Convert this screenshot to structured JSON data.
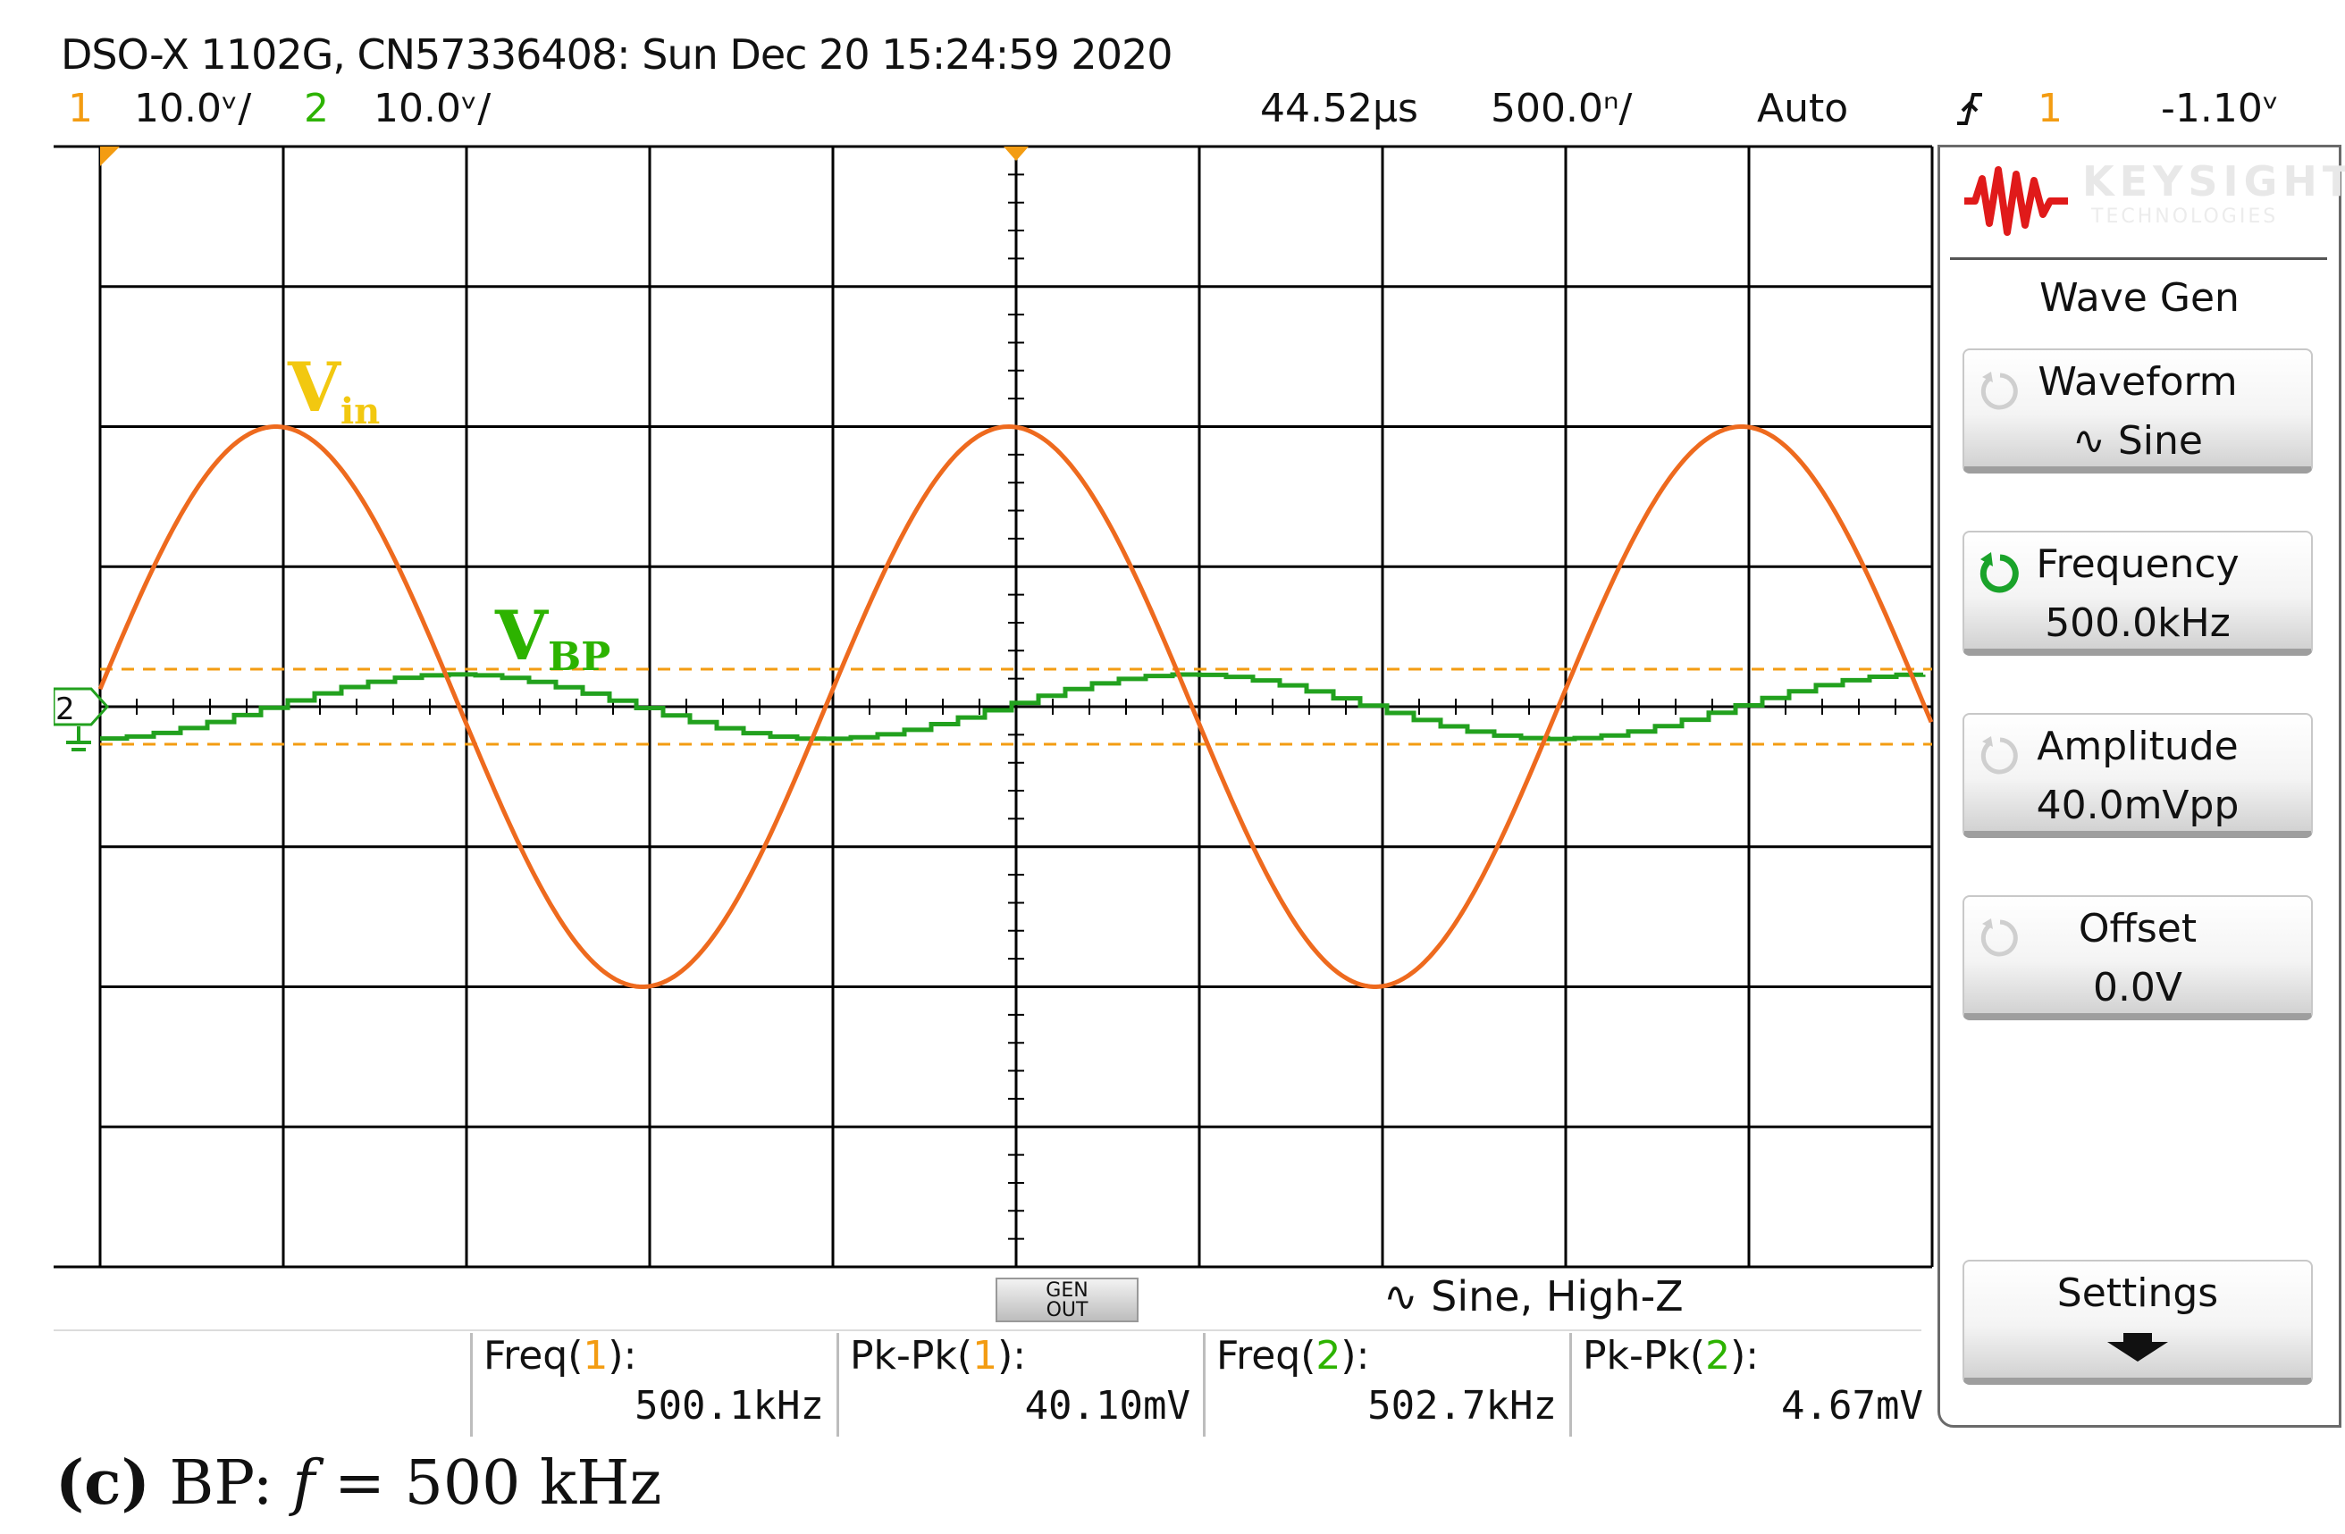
{
  "header": {
    "title": "DSO-X 1102G, CN57336408: Sun Dec 20 15:24:59 2020",
    "ch1_num": "1",
    "ch1_scale": "10.0ᵛ/",
    "ch2_num": "2",
    "ch2_scale": "10.0ᵛ/",
    "time_position": "44.52µs",
    "time_scale": "500.0ⁿ/",
    "trigger_mode": "Auto",
    "trigger_icon": "rising-edge-icon",
    "trigger_source": "1",
    "trigger_level": "-1.10ᵛ"
  },
  "colors": {
    "ch1": "#ee6a1e",
    "ch2": "#22a11e",
    "vin_label": "#f2c810",
    "vbp_label": "#2db300",
    "grid": "#000000",
    "marker": "#f39c12"
  },
  "screen": {
    "vin_label": "V",
    "vin_sub": "in",
    "vbp_label": "V",
    "vbp_sub": "BP",
    "ch2_ground_marker": "2"
  },
  "panel": {
    "brand": "KEYSIGHT",
    "brand_sub": "TECHNOLOGIES",
    "title": "Wave Gen",
    "softkeys": [
      {
        "label": "Waveform",
        "value": "∿ Sine"
      },
      {
        "label": "Frequency",
        "value": "500.0kHz"
      },
      {
        "label": "Amplitude",
        "value": "40.0mVpp"
      },
      {
        "label": "Offset",
        "value": "0.0V"
      },
      {
        "label": "Settings",
        "value": ""
      }
    ]
  },
  "status": {
    "gen_out_1": "GEN",
    "gen_out_2": "OUT",
    "wave_info": "∿  Sine, High-Z"
  },
  "measurements": [
    {
      "label_pre": "Freq(",
      "channel": "1",
      "label_post": "):",
      "value": "500.1kHz"
    },
    {
      "label_pre": "Pk-Pk(",
      "channel": "1",
      "label_post": "):",
      "value": "40.10mV"
    },
    {
      "label_pre": "Freq(",
      "channel": "2",
      "label_post": "):",
      "value": "502.7kHz"
    },
    {
      "label_pre": "Pk-Pk(",
      "channel": "2",
      "label_post": "):",
      "value": "4.67mV"
    }
  ],
  "caption": {
    "tag": "(c)",
    "text": " BP: ",
    "var": "f",
    "rest": " = 500 kHz"
  },
  "traces": {
    "ch1": {
      "period_divisions": 4.0,
      "amplitude_divisions": 2.0,
      "phase_divisions": 0.96,
      "name": "Vin"
    },
    "ch2": {
      "period_divisions": 4.0,
      "amplitude_divisions": 0.23,
      "phase_divisions": 1.9,
      "name": "VBP"
    }
  }
}
